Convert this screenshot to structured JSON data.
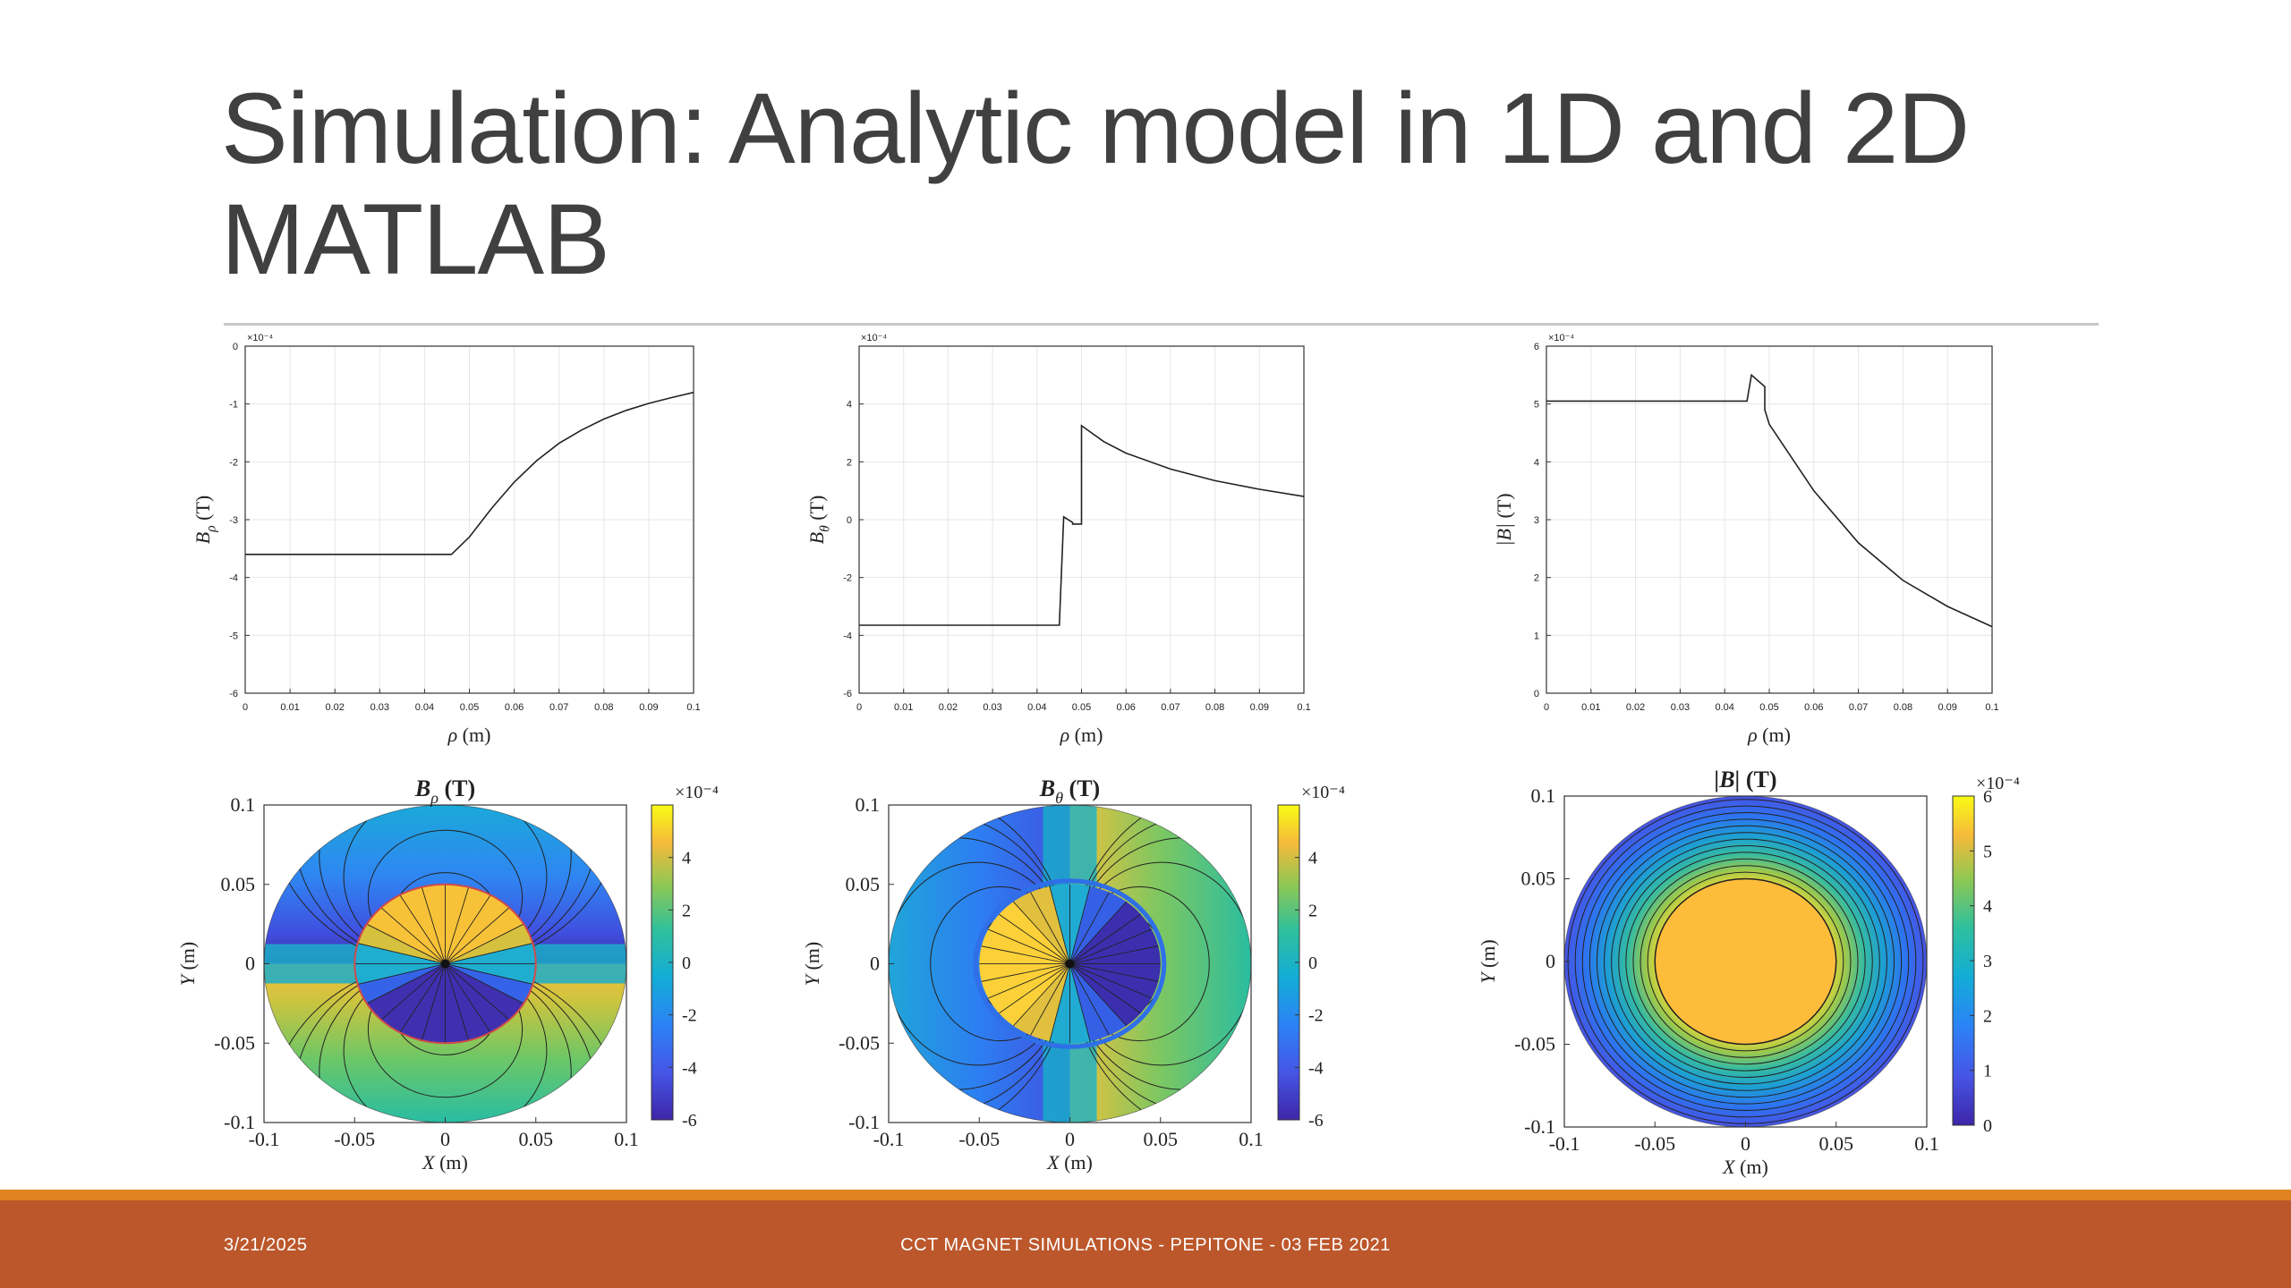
{
  "slide": {
    "title_lines": [
      "Simulation: Analytic model in 1D and 2D",
      "MATLAB"
    ],
    "footer_date": "3/21/2025",
    "footer_text": "CCT MAGNET SIMULATIONS - PEPITONE - 03 FEB 2021",
    "colors": {
      "footer": "#bc572b",
      "footer_stripe": "#e0821f",
      "title": "#404040"
    }
  },
  "chart_data": [
    {
      "type": "line",
      "ylabel": "B_ρ (T)",
      "xlabel": "ρ (m)",
      "y_multiplier": "×10⁻⁴",
      "xlim": [
        0,
        0.1
      ],
      "ylim": [
        -6,
        0
      ],
      "xticks": [
        "0",
        "0.01",
        "0.02",
        "0.03",
        "0.04",
        "0.05",
        "0.06",
        "0.07",
        "0.08",
        "0.09",
        "0.1"
      ],
      "yticks": [
        "0",
        "-1",
        "-2",
        "-3",
        "-4",
        "-5",
        "-6"
      ],
      "grid": true,
      "x": [
        0,
        0.044,
        0.046,
        0.05,
        0.055,
        0.06,
        0.065,
        0.07,
        0.075,
        0.08,
        0.085,
        0.09,
        0.095,
        0.1
      ],
      "y": [
        -3.6,
        -3.6,
        -3.6,
        -3.3,
        -2.8,
        -2.35,
        -1.98,
        -1.68,
        -1.45,
        -1.26,
        -1.11,
        -0.99,
        -0.89,
        -0.8
      ]
    },
    {
      "type": "line",
      "ylabel": "B_θ (T)",
      "xlabel": "ρ (m)",
      "y_multiplier": "×10⁻⁴",
      "xlim": [
        0,
        0.1
      ],
      "ylim": [
        -6,
        6
      ],
      "xticks": [
        "0",
        "0.01",
        "0.02",
        "0.03",
        "0.04",
        "0.05",
        "0.06",
        "0.07",
        "0.08",
        "0.09",
        "0.1"
      ],
      "yticks": [
        "4",
        "2",
        "0",
        "-2",
        "-4",
        "-6"
      ],
      "grid": true,
      "x": [
        0,
        0.045,
        0.046,
        0.048,
        0.048,
        0.05,
        0.05,
        0.055,
        0.06,
        0.07,
        0.08,
        0.09,
        0.1
      ],
      "y": [
        -3.65,
        -3.65,
        0.1,
        -0.1,
        -0.15,
        -0.15,
        3.25,
        2.7,
        2.3,
        1.75,
        1.35,
        1.05,
        0.8
      ]
    },
    {
      "type": "line",
      "ylabel": "|B| (T)",
      "xlabel": "ρ (m)",
      "y_multiplier": "×10⁻⁴",
      "xlim": [
        0,
        0.1
      ],
      "ylim": [
        0,
        6
      ],
      "xticks": [
        "0",
        "0.01",
        "0.02",
        "0.03",
        "0.04",
        "0.05",
        "0.06",
        "0.07",
        "0.08",
        "0.09",
        "0.1"
      ],
      "yticks": [
        "6",
        "5",
        "4",
        "3",
        "2",
        "1",
        "0"
      ],
      "grid": true,
      "x": [
        0,
        0.045,
        0.046,
        0.049,
        0.049,
        0.05,
        0.06,
        0.07,
        0.08,
        0.09,
        0.1
      ],
      "y": [
        5.05,
        5.05,
        5.5,
        5.3,
        4.9,
        4.65,
        3.5,
        2.6,
        1.95,
        1.5,
        1.15
      ]
    },
    {
      "type": "heatmap",
      "title": "B_ρ (T)",
      "xlabel": "X (m)",
      "ylabel": "Y (m)",
      "xlim": [
        -0.1,
        0.1
      ],
      "ylim": [
        -0.1,
        0.1
      ],
      "xticks": [
        "-0.1",
        "-0.05",
        "0",
        "0.05",
        "0.1"
      ],
      "yticks": [
        "0.1",
        "0.05",
        "0",
        "-0.05",
        "-0.1"
      ],
      "colorbar_ticks": [
        "4",
        "2",
        "0",
        "-2",
        "-4",
        "-6"
      ],
      "colorbar_range": [
        -6,
        6
      ],
      "colorbar_multiplier": "×10⁻⁴"
    },
    {
      "type": "heatmap",
      "title": "B_θ (T)",
      "xlabel": "X (m)",
      "ylabel": "Y (m)",
      "xlim": [
        -0.1,
        0.1
      ],
      "ylim": [
        -0.1,
        0.1
      ],
      "xticks": [
        "-0.1",
        "-0.05",
        "0",
        "0.05",
        "0.1"
      ],
      "yticks": [
        "0.1",
        "0.05",
        "0",
        "-0.05",
        "-0.1"
      ],
      "colorbar_ticks": [
        "4",
        "2",
        "0",
        "-2",
        "-4",
        "-6"
      ],
      "colorbar_range": [
        -6,
        6
      ],
      "colorbar_multiplier": "×10⁻⁴"
    },
    {
      "type": "heatmap",
      "title": "|B| (T)",
      "xlabel": "X (m)",
      "ylabel": "Y (m)",
      "xlim": [
        -0.1,
        0.1
      ],
      "ylim": [
        -0.1,
        0.1
      ],
      "xticks": [
        "-0.1",
        "-0.05",
        "0",
        "0.05",
        "0.1"
      ],
      "yticks": [
        "0.1",
        "0.05",
        "0",
        "-0.05",
        "-0.1"
      ],
      "colorbar_ticks": [
        "6",
        "5",
        "4",
        "3",
        "2",
        "1",
        "0"
      ],
      "colorbar_range": [
        0,
        6
      ],
      "colorbar_multiplier": "×10⁻⁴"
    }
  ]
}
